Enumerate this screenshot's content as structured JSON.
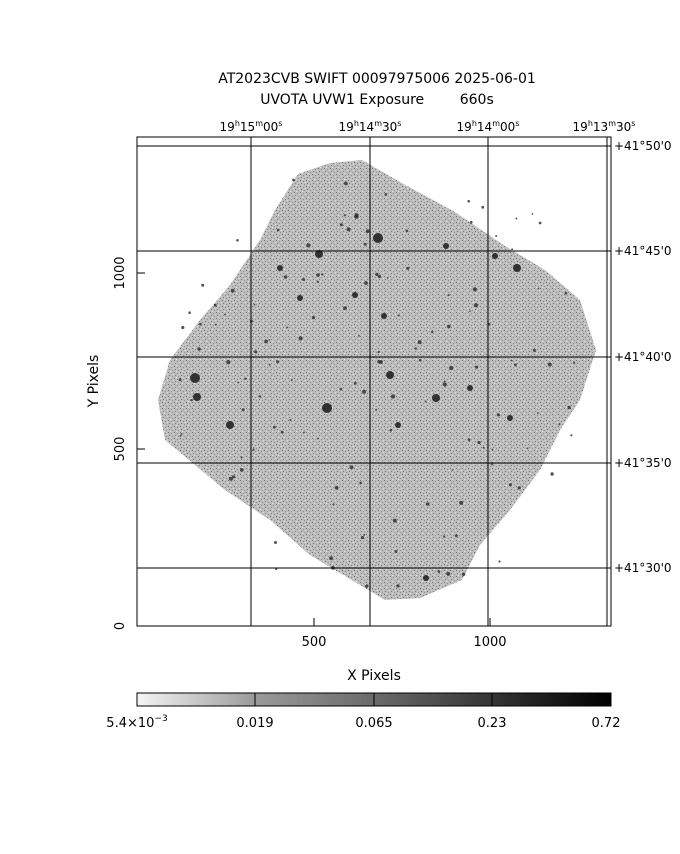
{
  "title": {
    "line1": "AT2023CVB SWIFT 00097975006 2025-06-01",
    "line2": "UVOTA UVW1 Exposure        660s"
  },
  "axes": {
    "xlabel": "X Pixels",
    "ylabel": "Y Pixels",
    "x_ticks": [
      "500",
      "1000"
    ],
    "y_ticks": [
      "0",
      "500",
      "1000"
    ]
  },
  "ra_ticks": [
    {
      "h": "19",
      "m": "15",
      "s": "00"
    },
    {
      "h": "19",
      "m": "14",
      "s": "30"
    },
    {
      "h": "19",
      "m": "14",
      "s": "00"
    },
    {
      "h": "19",
      "m": "13",
      "s": "30"
    }
  ],
  "dec_ticks": [
    "+41°50'0",
    "+41°45'0",
    "+41°40'0",
    "+41°35'0",
    "+41°30'0"
  ],
  "colorbar": {
    "labels": [
      "5.4×10",
      "0.019",
      "0.065",
      "0.23",
      "0.72"
    ],
    "first_exponent": "−3"
  },
  "colors": {
    "background": "#ffffff",
    "exposure_gray": "#a8a8a8",
    "frame": "#000000"
  }
}
